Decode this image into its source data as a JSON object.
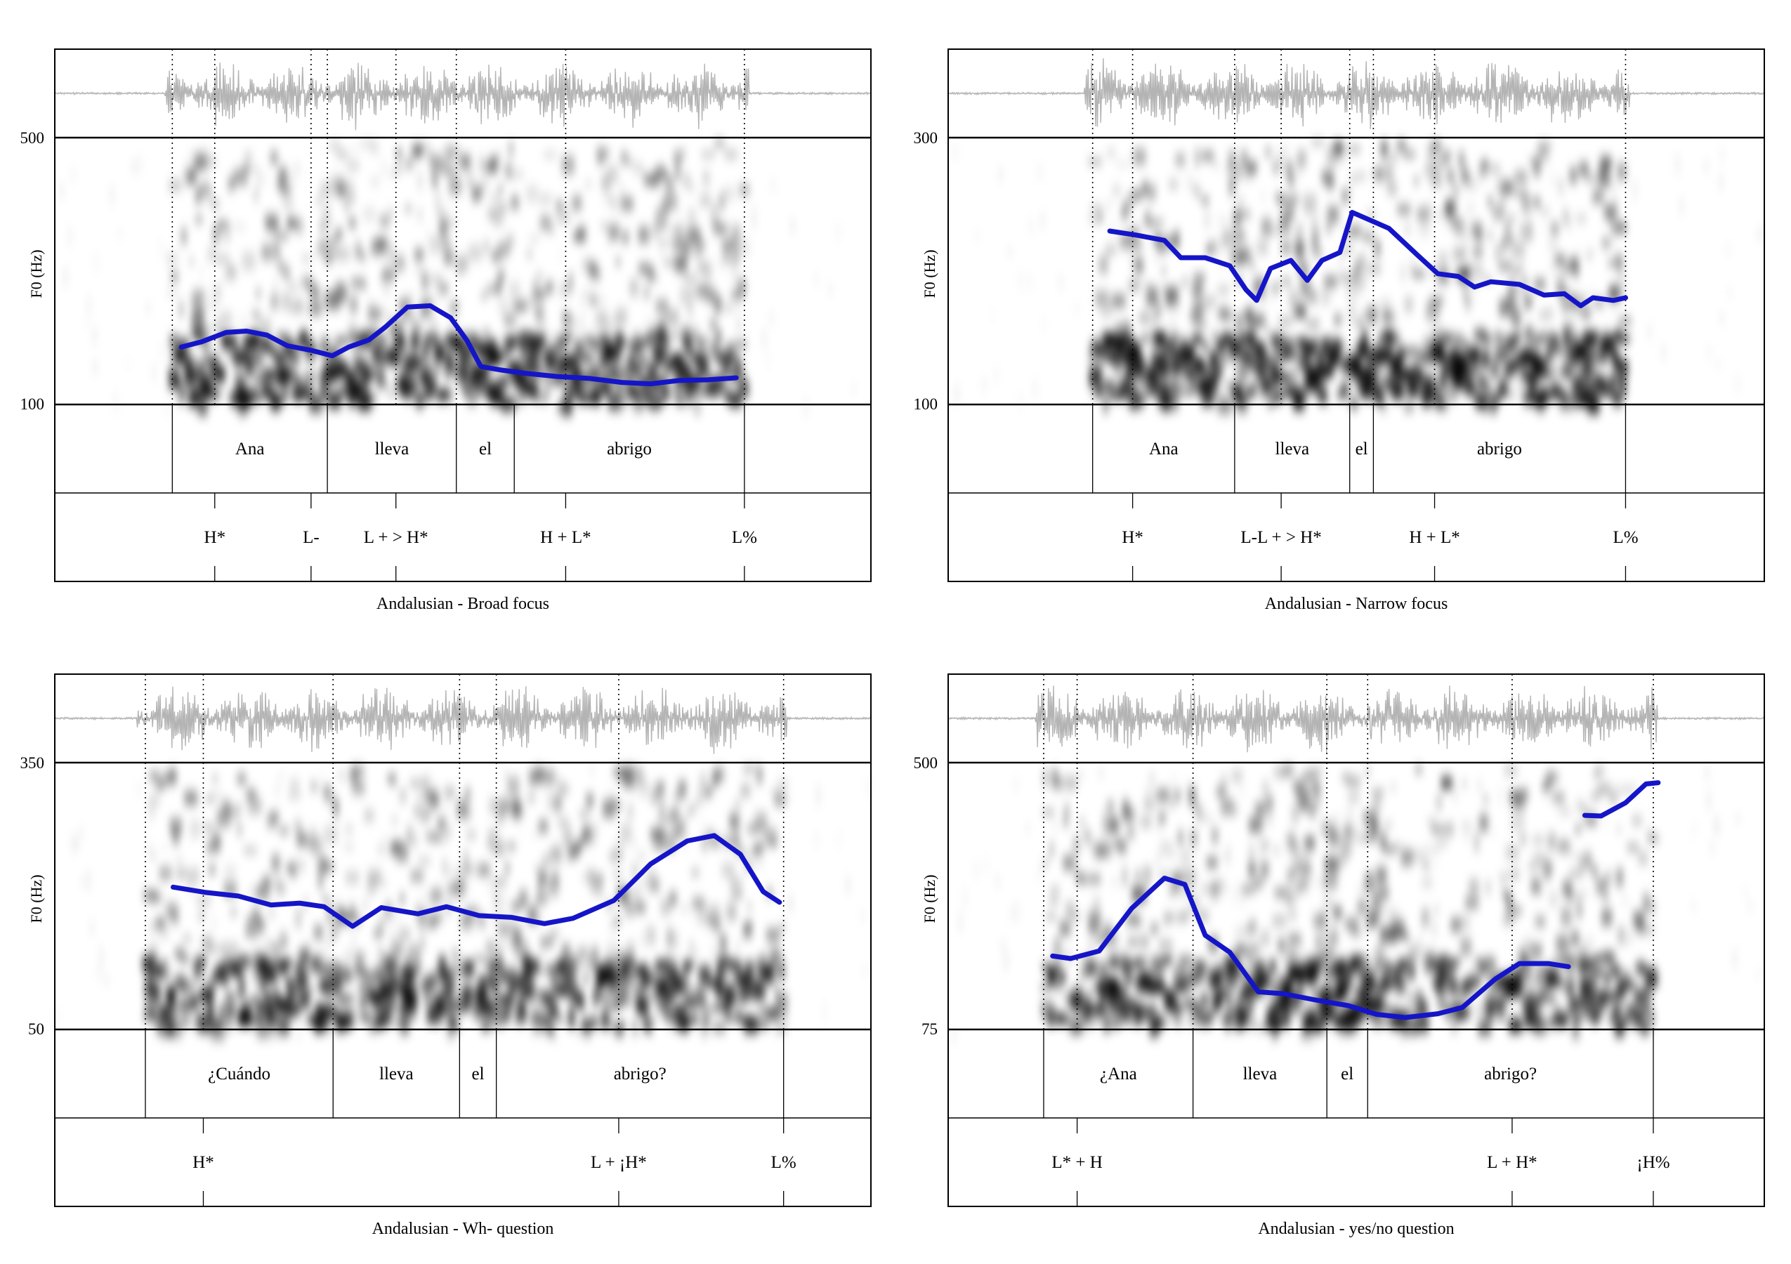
{
  "axis_label": "F0 (Hz)",
  "colors": {
    "pitch": "#1515c8",
    "wave": "#b4b4b4",
    "frame": "#000000"
  },
  "chart_data": [
    {
      "type": "line",
      "title": "Andalusian - Broad focus",
      "ylabel": "F0 (Hz)",
      "ylim": [
        100,
        500
      ],
      "yticks": [
        "500",
        "100"
      ],
      "words": [
        {
          "label": "Ana",
          "start": 0.144,
          "end": 0.334
        },
        {
          "label": "lleva",
          "start": 0.334,
          "end": 0.492
        },
        {
          "label": "el",
          "start": 0.492,
          "end": 0.563
        },
        {
          "label": "abrigo",
          "start": 0.563,
          "end": 0.845
        }
      ],
      "tones": [
        {
          "label": "H*",
          "t": 0.196
        },
        {
          "label": "L-",
          "t": 0.314
        },
        {
          "label": "L + > H*",
          "t": 0.418
        },
        {
          "label": "H + L*",
          "t": 0.626
        },
        {
          "label": "L%",
          "t": 0.845
        }
      ],
      "dotted": [
        0.144,
        0.196,
        0.314,
        0.334,
        0.418,
        0.492,
        0.626,
        0.845
      ],
      "pitch": [
        [
          0.155,
          186
        ],
        [
          0.18,
          194
        ],
        [
          0.21,
          208
        ],
        [
          0.235,
          210
        ],
        [
          0.26,
          204
        ],
        [
          0.285,
          188
        ],
        [
          0.315,
          181
        ],
        [
          0.34,
          173
        ],
        [
          0.36,
          186
        ],
        [
          0.385,
          197
        ],
        [
          0.405,
          216
        ],
        [
          0.432,
          246
        ],
        [
          0.46,
          248
        ],
        [
          0.485,
          230
        ],
        [
          0.505,
          196
        ],
        [
          0.522,
          157
        ],
        [
          0.545,
          152
        ],
        [
          0.575,
          147
        ],
        [
          0.615,
          142
        ],
        [
          0.655,
          139
        ],
        [
          0.695,
          133
        ],
        [
          0.73,
          131
        ],
        [
          0.765,
          136
        ],
        [
          0.8,
          137
        ],
        [
          0.835,
          140
        ]
      ]
    },
    {
      "type": "line",
      "title": "Andalusian - Narrow focus",
      "ylabel": "F0 (Hz)",
      "ylim": [
        100,
        300
      ],
      "yticks": [
        "300",
        "100"
      ],
      "words": [
        {
          "label": "Ana",
          "start": 0.177,
          "end": 0.351
        },
        {
          "label": "lleva",
          "start": 0.351,
          "end": 0.492
        },
        {
          "label": "el",
          "start": 0.492,
          "end": 0.521
        },
        {
          "label": "abrigo",
          "start": 0.521,
          "end": 0.83
        }
      ],
      "tones": [
        {
          "label": "H*",
          "t": 0.226
        },
        {
          "label": "L-L + > H*",
          "t": 0.408
        },
        {
          "label": "H + L*",
          "t": 0.596
        },
        {
          "label": "L%",
          "t": 0.83
        }
      ],
      "dotted": [
        0.177,
        0.226,
        0.351,
        0.408,
        0.492,
        0.521,
        0.596,
        0.83
      ],
      "pitch": [
        [
          0.198,
          230
        ],
        [
          0.23,
          227
        ],
        [
          0.265,
          223
        ],
        [
          0.285,
          210
        ],
        [
          0.315,
          210
        ],
        [
          0.345,
          204
        ],
        [
          0.365,
          186
        ],
        [
          0.378,
          178
        ],
        [
          0.395,
          202
        ],
        [
          0.42,
          208
        ],
        [
          0.44,
          193
        ],
        [
          0.458,
          208
        ],
        [
          0.48,
          214
        ],
        [
          0.495,
          244
        ],
        [
          0.525,
          236
        ],
        [
          0.54,
          232
        ],
        [
          0.575,
          212
        ],
        [
          0.6,
          198
        ],
        [
          0.625,
          196
        ],
        [
          0.645,
          188
        ],
        [
          0.665,
          192
        ],
        [
          0.7,
          190
        ],
        [
          0.73,
          182
        ],
        [
          0.755,
          183
        ],
        [
          0.775,
          174
        ],
        [
          0.79,
          180
        ],
        [
          0.815,
          178
        ],
        [
          0.83,
          180
        ]
      ]
    },
    {
      "type": "line",
      "title": "Andalusian - Wh- question",
      "ylabel": "F0 (Hz)",
      "ylim": [
        50,
        350
      ],
      "yticks": [
        "350",
        "50"
      ],
      "words": [
        {
          "label": "¿Cuándo",
          "start": 0.111,
          "end": 0.341
        },
        {
          "label": "lleva",
          "start": 0.341,
          "end": 0.496
        },
        {
          "label": "el",
          "start": 0.496,
          "end": 0.541
        },
        {
          "label": "abrigo?",
          "start": 0.541,
          "end": 0.893
        }
      ],
      "tones": [
        {
          "label": "H*",
          "t": 0.182
        },
        {
          "label": "L + ¡H*",
          "t": 0.691
        },
        {
          "label": "L%",
          "t": 0.893
        }
      ],
      "dotted": [
        0.111,
        0.182,
        0.341,
        0.496,
        0.541,
        0.691,
        0.893
      ],
      "pitch": [
        [
          0.145,
          210
        ],
        [
          0.185,
          204
        ],
        [
          0.225,
          200
        ],
        [
          0.265,
          190
        ],
        [
          0.3,
          192
        ],
        [
          0.33,
          188
        ],
        [
          0.365,
          166
        ],
        [
          0.4,
          187
        ],
        [
          0.445,
          180
        ],
        [
          0.48,
          188
        ],
        [
          0.52,
          178
        ],
        [
          0.56,
          176
        ],
        [
          0.6,
          169
        ],
        [
          0.635,
          175
        ],
        [
          0.685,
          195
        ],
        [
          0.73,
          236
        ],
        [
          0.775,
          262
        ],
        [
          0.808,
          268
        ],
        [
          0.84,
          247
        ],
        [
          0.868,
          205
        ],
        [
          0.888,
          193
        ]
      ]
    },
    {
      "type": "line",
      "title": "Andalusian - yes/no question",
      "ylabel": "F0 (Hz)",
      "ylim": [
        75,
        500
      ],
      "yticks": [
        "500",
        "75"
      ],
      "words": [
        {
          "label": "¿Ana",
          "start": 0.117,
          "end": 0.3
        },
        {
          "label": "lleva",
          "start": 0.3,
          "end": 0.464
        },
        {
          "label": "el",
          "start": 0.464,
          "end": 0.514
        },
        {
          "label": "abrigo?",
          "start": 0.514,
          "end": 0.864
        }
      ],
      "tones": [
        {
          "label": "L* + H",
          "t": 0.158
        },
        {
          "label": "L + H*",
          "t": 0.691
        },
        {
          "label": "¡H%",
          "t": 0.864
        }
      ],
      "dotted": [
        0.117,
        0.158,
        0.3,
        0.464,
        0.514,
        0.691,
        0.864
      ],
      "pitch": [
        [
          0.128,
          192
        ],
        [
          0.15,
          188
        ],
        [
          0.185,
          200
        ],
        [
          0.225,
          268
        ],
        [
          0.265,
          316
        ],
        [
          0.29,
          306
        ],
        [
          0.315,
          225
        ],
        [
          0.345,
          198
        ],
        [
          0.38,
          135
        ],
        [
          0.41,
          132
        ],
        [
          0.45,
          122
        ],
        [
          0.49,
          113
        ],
        [
          0.525,
          99
        ],
        [
          0.56,
          94
        ],
        [
          0.6,
          100
        ],
        [
          0.63,
          110
        ],
        [
          0.67,
          155
        ],
        [
          0.7,
          180
        ],
        [
          0.735,
          180
        ],
        [
          0.76,
          175
        ]
      ],
      "pitch2": [
        [
          0.78,
          416
        ],
        [
          0.8,
          415
        ],
        [
          0.83,
          436
        ],
        [
          0.855,
          466
        ],
        [
          0.87,
          468
        ]
      ]
    }
  ]
}
